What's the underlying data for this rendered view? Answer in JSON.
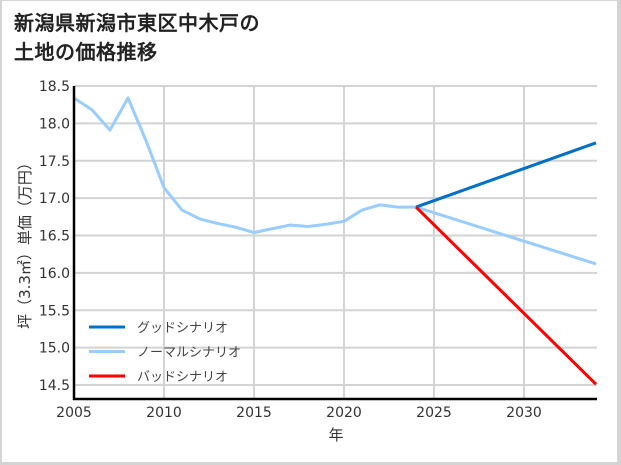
{
  "title": {
    "line1": "新潟県新潟市東区中木戸の",
    "line2": "土地の価格推移"
  },
  "chart_data": {
    "type": "line",
    "title": "新潟県新潟市東区中木戸の土地の価格推移",
    "xlabel": "年",
    "ylabel": "坪（3.3㎡）単価（万円）",
    "xlim": [
      2005,
      2034
    ],
    "ylim": [
      14.31,
      18.5
    ],
    "xticks": [
      2005,
      2010,
      2015,
      2020,
      2025,
      2030
    ],
    "yticks": [
      14.5,
      15.0,
      15.5,
      16.0,
      16.5,
      17.0,
      17.5,
      18.0,
      18.5
    ],
    "grid": true,
    "legend_position": "lower left",
    "series": [
      {
        "name": "ノーマルシナリオ",
        "color": "#99ccff",
        "x": [
          2005,
          2006,
          2007,
          2008,
          2009,
          2010,
          2011,
          2012,
          2013,
          2014,
          2015,
          2016,
          2017,
          2018,
          2019,
          2020,
          2021,
          2022,
          2023,
          2024,
          2034
        ],
        "values": [
          18.34,
          18.18,
          17.91,
          18.34,
          17.77,
          17.14,
          16.84,
          16.72,
          16.66,
          16.61,
          16.54,
          16.59,
          16.64,
          16.62,
          16.65,
          16.69,
          16.84,
          16.91,
          16.88,
          16.88,
          16.12
        ]
      },
      {
        "name": "グッドシナリオ",
        "color": "#0070c8",
        "x": [
          2024,
          2034
        ],
        "values": [
          16.88,
          17.74
        ]
      },
      {
        "name": "バッドシナリオ",
        "color": "#ff0000",
        "x": [
          2024,
          2034
        ],
        "values": [
          16.88,
          14.51
        ]
      }
    ],
    "legend": [
      {
        "label": "グッドシナリオ",
        "color": "#0070c8"
      },
      {
        "label": "ノーマルシナリオ",
        "color": "#99ccff"
      },
      {
        "label": "バッドシナリオ",
        "color": "#ff0000"
      }
    ]
  }
}
